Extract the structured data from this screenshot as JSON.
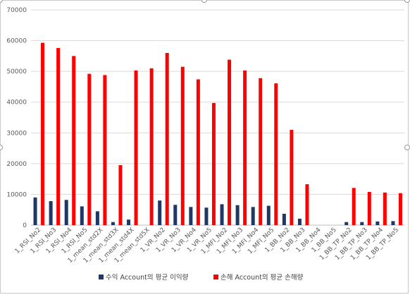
{
  "chart_data": {
    "type": "bar",
    "categories": [
      "1_RSI_No2",
      "1_RSI_No3",
      "1_RSI_No4",
      "1_RSI_No5",
      "1_mean_std2X",
      "1_mean_std3X",
      "1_mean_std4X",
      "1_mean_std5X",
      "1_VR_No2",
      "1_VR_No3",
      "1_VR_No4",
      "1_VR_No5",
      "1_MFI_No2",
      "1_MFI_No3",
      "1_MFI_No4",
      "1_MFI_No5",
      "1_BB_No2",
      "1_BB_No3",
      "1_BB_No4",
      "1_BB_No5",
      "1_BB_TP_No2",
      "1_BB_TP_No3",
      "1_BB_TP_No4",
      "1_BB_TP_No5"
    ],
    "series": [
      {
        "name": "수익 Account의 평균 이익량",
        "color": "#1f3864",
        "values": [
          9000,
          7800,
          8200,
          6100,
          4500,
          1000,
          1800,
          0,
          8000,
          6600,
          5900,
          5700,
          6800,
          6500,
          5900,
          6300,
          3700,
          2100,
          0,
          0,
          1000,
          1000,
          1200,
          1300
        ]
      },
      {
        "name": "손해 Account의 평균 손해량",
        "color": "#ff0000",
        "values": [
          59300,
          57600,
          55000,
          49200,
          48800,
          19500,
          50300,
          51000,
          56000,
          51500,
          47400,
          39700,
          53800,
          50300,
          47800,
          46100,
          31000,
          13300,
          0,
          0,
          12100,
          10800,
          10600,
          10400
        ]
      }
    ],
    "yticks": [
      "0",
      "10000",
      "20000",
      "30000",
      "40000",
      "50000",
      "60000",
      "70000"
    ],
    "ylim": [
      0,
      70000
    ],
    "grid": true,
    "legend": "bottom"
  }
}
